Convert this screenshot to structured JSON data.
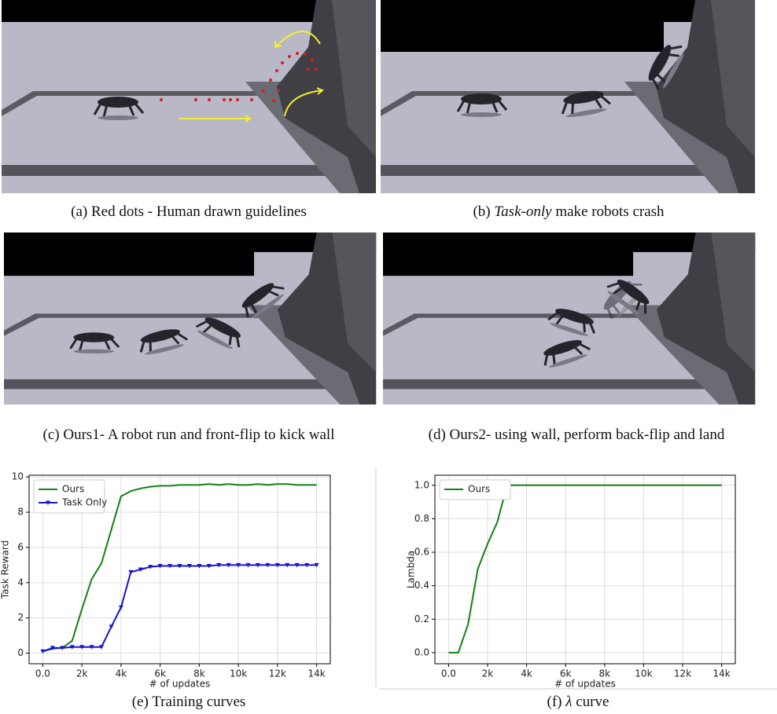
{
  "captions": [
    {
      "label": "(a)",
      "text": "Red dots - Human drawn guidelines"
    },
    {
      "label": "(b)",
      "emphasis": "Task-only",
      "text": "make robots crash"
    },
    {
      "label": "(c)",
      "text": "Ours1- A robot run and front-flip to kick wall"
    },
    {
      "label": "(d)",
      "text": "Ours2- using wall, perform back-flip and land"
    },
    {
      "label": "(e)",
      "text": "Training curves"
    },
    {
      "label": "(f)",
      "symbol": "λ",
      "text": "curve"
    }
  ],
  "chart_data": [
    {
      "type": "line",
      "xlabel": "# of updates",
      "ylabel": "Task Reward",
      "grid": true,
      "legend": "upper left",
      "x": [
        0,
        500,
        1000,
        1500,
        2000,
        2500,
        3000,
        3500,
        4000,
        4500,
        5000,
        5500,
        6000,
        6500,
        7000,
        7500,
        8000,
        8500,
        9000,
        9500,
        10000,
        10500,
        11000,
        11500,
        12000,
        12500,
        13000,
        13500,
        14000
      ],
      "xlim": [
        -700,
        14700
      ],
      "ylim": [
        -0.6,
        10.1
      ],
      "xticks": [
        {
          "value": 0,
          "label": "0.0"
        },
        {
          "value": 2000,
          "label": "2k"
        },
        {
          "value": 4000,
          "label": "4k"
        },
        {
          "value": 6000,
          "label": "6k"
        },
        {
          "value": 8000,
          "label": "8k"
        },
        {
          "value": 10000,
          "label": "10k"
        },
        {
          "value": 12000,
          "label": "12k"
        },
        {
          "value": 14000,
          "label": "14k"
        }
      ],
      "yticks": [
        0,
        2,
        4,
        6,
        8,
        10
      ],
      "series": [
        {
          "name": "Ours",
          "color": "#138013",
          "values": [
            0.1,
            0.25,
            0.3,
            0.7,
            2.5,
            4.2,
            5.1,
            7.0,
            8.9,
            9.2,
            9.35,
            9.45,
            9.5,
            9.5,
            9.55,
            9.55,
            9.55,
            9.6,
            9.55,
            9.6,
            9.55,
            9.55,
            9.6,
            9.55,
            9.6,
            9.6,
            9.55,
            9.55,
            9.55
          ]
        },
        {
          "name": "Task Only",
          "color": "#1515d0",
          "marker": "v",
          "values": [
            0.1,
            0.3,
            0.3,
            0.35,
            0.35,
            0.35,
            0.35,
            1.5,
            2.6,
            4.6,
            4.75,
            4.9,
            4.95,
            4.95,
            4.95,
            4.95,
            4.95,
            4.95,
            5.0,
            5.0,
            5.0,
            5.0,
            5.0,
            5.0,
            5.0,
            5.0,
            5.0,
            5.0,
            5.0
          ]
        }
      ]
    },
    {
      "type": "line",
      "xlabel": "# of updates",
      "ylabel": "Lambda",
      "grid": true,
      "legend": "upper left",
      "x": [
        0,
        500,
        1000,
        1500,
        2000,
        2500,
        3000,
        3500,
        4000,
        4500,
        5000,
        5500,
        6000,
        6500,
        7000,
        7500,
        8000,
        8500,
        9000,
        9500,
        10000,
        10500,
        11000,
        11500,
        12000,
        12500,
        13000,
        13500,
        14000
      ],
      "xlim": [
        -700,
        14700
      ],
      "ylim": [
        -0.066,
        1.06
      ],
      "xticks": [
        {
          "value": 0,
          "label": "0.0"
        },
        {
          "value": 2000,
          "label": "2k"
        },
        {
          "value": 4000,
          "label": "4k"
        },
        {
          "value": 6000,
          "label": "6k"
        },
        {
          "value": 8000,
          "label": "8k"
        },
        {
          "value": 10000,
          "label": "10k"
        },
        {
          "value": 12000,
          "label": "12k"
        },
        {
          "value": 14000,
          "label": "14k"
        }
      ],
      "yticks": [
        {
          "value": 0,
          "label": "0.0"
        },
        0.2,
        0.4,
        0.6,
        0.8,
        {
          "value": 1,
          "label": "1.0"
        }
      ],
      "series": [
        {
          "name": "Ours",
          "color": "#138013",
          "values": [
            0,
            0,
            0.17,
            0.5,
            0.65,
            0.78,
            1,
            1,
            1,
            1,
            1,
            1,
            1,
            1,
            1,
            1,
            1,
            1,
            1,
            1,
            1,
            1,
            1,
            1,
            1,
            1,
            1,
            1,
            1
          ]
        }
      ]
    }
  ]
}
